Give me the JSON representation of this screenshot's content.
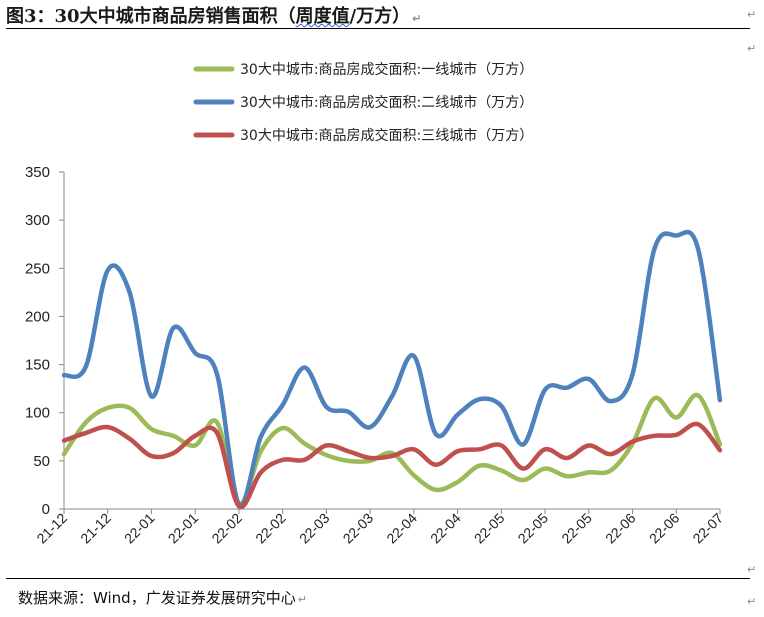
{
  "header": {
    "title_main": "图3：30大中城市商品房销售面积（",
    "title_underlined": "周度值",
    "title_tail": "/万方）"
  },
  "footer": {
    "source": "数据来源：Wind，广发证券发展研究中心"
  },
  "chart_data": {
    "type": "line",
    "ylim": [
      0,
      350
    ],
    "yticks": [
      0,
      50,
      100,
      150,
      200,
      250,
      300,
      350
    ],
    "grid": false,
    "legend_position": "top-center",
    "x_tick_labels": [
      "21-12",
      "21-12",
      "22-01",
      "22-01",
      "22-02",
      "22-02",
      "22-03",
      "22-03",
      "22-04",
      "22-04",
      "22-05",
      "22-05",
      "22-05",
      "22-06",
      "22-06",
      "22-07"
    ],
    "series": [
      {
        "name": "30大中城市:商品房成交面积:一线城市（万方）",
        "color": "#9bbb59",
        "values": [
          57,
          90,
          105,
          105,
          83,
          76,
          66,
          90,
          5,
          60,
          84,
          68,
          56,
          50,
          50,
          58,
          35,
          20,
          28,
          45,
          40,
          30,
          42,
          34,
          38,
          40,
          68,
          115,
          95,
          118,
          67
        ]
      },
      {
        "name": "30大中城市:商品房成交面积:二线城市（万方）",
        "color": "#4f81bd",
        "values": [
          139,
          148,
          248,
          225,
          117,
          188,
          162,
          140,
          5,
          75,
          108,
          147,
          106,
          101,
          85,
          117,
          159,
          78,
          98,
          114,
          107,
          67,
          124,
          126,
          135,
          112,
          140,
          270,
          284,
          270,
          113
        ]
      },
      {
        "name": "30大中城市:商品房成交面积:三线城市（万方）",
        "color": "#c0504d",
        "values": [
          71,
          79,
          85,
          73,
          55,
          58,
          76,
          79,
          3,
          38,
          51,
          51,
          66,
          60,
          53,
          55,
          62,
          46,
          60,
          62,
          66,
          42,
          62,
          53,
          66,
          57,
          70,
          76,
          77,
          88,
          61
        ]
      }
    ]
  }
}
